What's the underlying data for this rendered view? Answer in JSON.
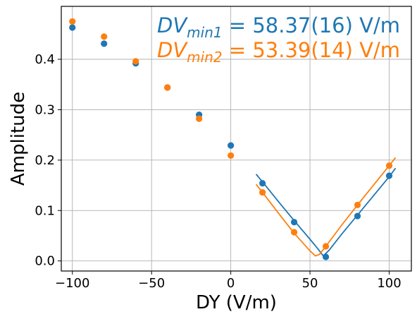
{
  "chart_data": {
    "type": "scatter",
    "xlabel": "DY (V/m)",
    "ylabel": "Amplitude",
    "xlim": [
      -107,
      114
    ],
    "ylim": [
      -0.02,
      0.505
    ],
    "x_ticks": [
      -100,
      -50,
      0,
      50,
      100
    ],
    "x_tick_labels": [
      "−100",
      "−50",
      "0",
      "50",
      "100"
    ],
    "y_ticks": [
      0.0,
      0.1,
      0.2,
      0.3,
      0.4
    ],
    "y_tick_labels": [
      "0.0",
      "0.1",
      "0.2",
      "0.3",
      "0.4"
    ],
    "grid": true,
    "series": [
      {
        "color": "#1f77b4",
        "x": [
          -100,
          -80,
          -60,
          -40,
          -20,
          0,
          20,
          40,
          60,
          80,
          100
        ],
        "y": [
          0.463,
          0.431,
          0.392,
          0.344,
          0.29,
          0.229,
          0.154,
          0.077,
          0.008,
          0.089,
          0.169
        ],
        "fit": {
          "x": [
            16,
            20,
            30,
            40,
            50,
            55,
            58.37,
            62,
            70,
            80,
            90,
            100,
            104
          ],
          "y": [
            0.172,
            0.157,
            0.118,
            0.08,
            0.043,
            0.024,
            0.01,
            0.021,
            0.053,
            0.091,
            0.129,
            0.167,
            0.184
          ]
        }
      },
      {
        "color": "#ff7f0e",
        "x": [
          -100,
          -80,
          -60,
          -40,
          -20,
          0,
          20,
          40,
          60,
          80,
          100
        ],
        "y": [
          0.475,
          0.445,
          0.396,
          0.344,
          0.282,
          0.209,
          0.136,
          0.057,
          0.029,
          0.111,
          0.189
        ],
        "fit": {
          "x": [
            16,
            20,
            30,
            40,
            50,
            53.39,
            56,
            60,
            70,
            80,
            90,
            100,
            104
          ],
          "y": [
            0.152,
            0.136,
            0.095,
            0.055,
            0.02,
            0.01,
            0.013,
            0.029,
            0.071,
            0.111,
            0.15,
            0.189,
            0.205
          ]
        }
      }
    ],
    "annotations": [
      {
        "base": "DV",
        "sub": "min1",
        "rest": " = 58.37(16) V/m",
        "color": "#1f77b4"
      },
      {
        "base": "DV",
        "sub": "min2",
        "rest": " = 53.39(14) V/m",
        "color": "#ff7f0e"
      }
    ]
  }
}
